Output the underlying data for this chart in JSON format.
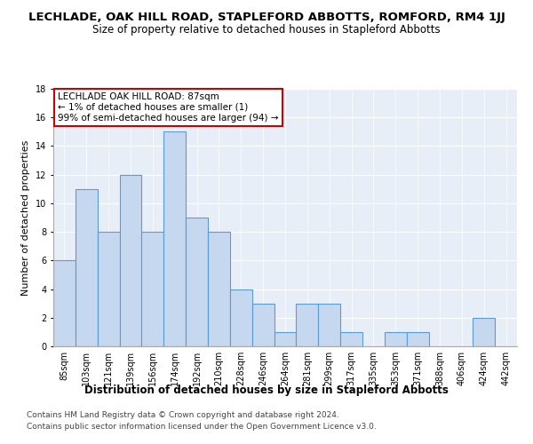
{
  "title": "LECHLADE, OAK HILL ROAD, STAPLEFORD ABBOTTS, ROMFORD, RM4 1JJ",
  "subtitle": "Size of property relative to detached houses in Stapleford Abbotts",
  "xlabel": "Distribution of detached houses by size in Stapleford Abbotts",
  "ylabel": "Number of detached properties",
  "categories": [
    "85sqm",
    "103sqm",
    "121sqm",
    "139sqm",
    "156sqm",
    "174sqm",
    "192sqm",
    "210sqm",
    "228sqm",
    "246sqm",
    "264sqm",
    "281sqm",
    "299sqm",
    "317sqm",
    "335sqm",
    "353sqm",
    "371sqm",
    "388sqm",
    "406sqm",
    "424sqm",
    "442sqm"
  ],
  "values": [
    6,
    11,
    8,
    12,
    8,
    15,
    9,
    8,
    4,
    3,
    1,
    3,
    3,
    1,
    0,
    1,
    1,
    0,
    0,
    2,
    0
  ],
  "bar_color": "#c5d8f0",
  "bar_edge_color": "#5b9bd5",
  "annotation_box_color": "#ffffff",
  "annotation_box_edge": "#cc0000",
  "annotation_line1": "LECHLADE OAK HILL ROAD: 87sqm",
  "annotation_line2": "← 1% of detached houses are smaller (1)",
  "annotation_line3": "99% of semi-detached houses are larger (94) →",
  "ylim": [
    0,
    18
  ],
  "yticks": [
    0,
    2,
    4,
    6,
    8,
    10,
    12,
    14,
    16,
    18
  ],
  "footer1": "Contains HM Land Registry data © Crown copyright and database right 2024.",
  "footer2": "Contains public sector information licensed under the Open Government Licence v3.0.",
  "bg_color": "#e8eef8",
  "grid_color": "#ffffff",
  "title_fontsize": 9.5,
  "subtitle_fontsize": 8.5,
  "ylabel_fontsize": 8,
  "xlabel_fontsize": 8.5,
  "tick_fontsize": 7,
  "annotation_fontsize": 7.5,
  "footer_fontsize": 6.5
}
